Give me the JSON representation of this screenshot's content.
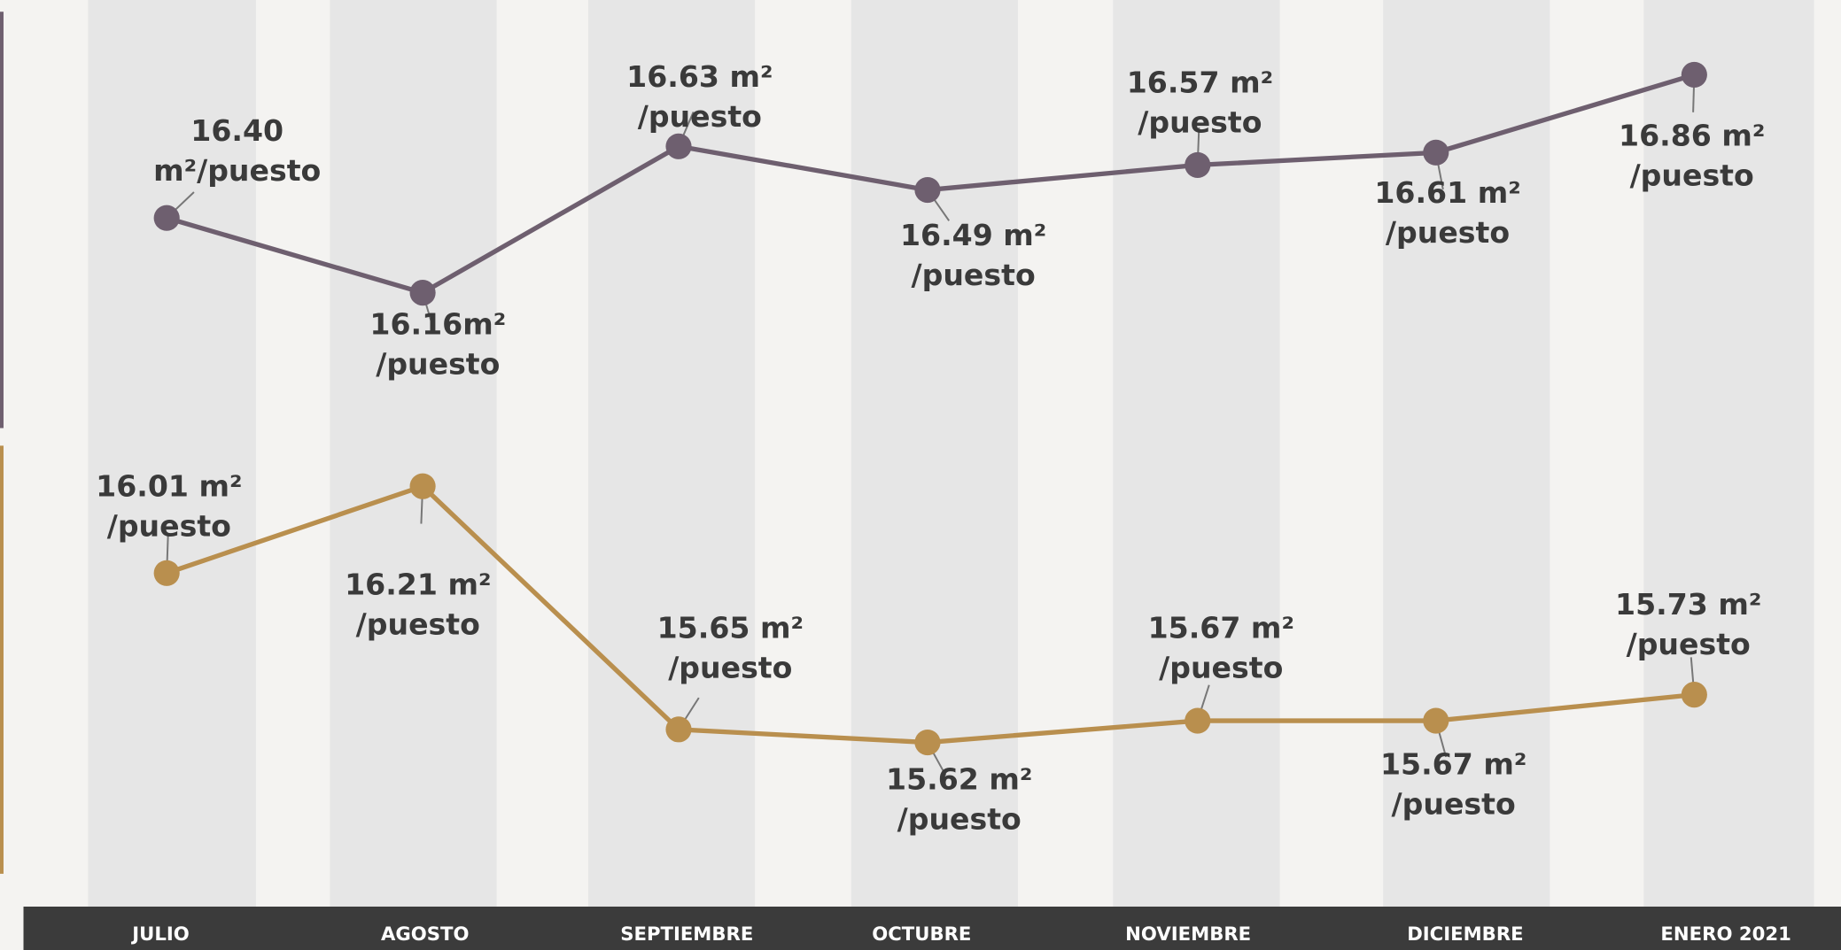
{
  "chart_data": {
    "type": "line",
    "categories": [
      "JULIO",
      "AGOSTO",
      "SEPTIEMBRE",
      "OCTUBRE",
      "NOVIEMBRE",
      "DICIEMBRE",
      "ENERO 2021"
    ],
    "series": [
      {
        "color": "#6e5f6f",
        "values": [
          16.4,
          16.16,
          16.63,
          16.49,
          16.57,
          16.61,
          16.86
        ],
        "value_labels": [
          "16.40\nm²/puesto",
          "16.16m²\n/puesto",
          "16.63 m²\n/puesto",
          "16.49 m²\n/puesto",
          "16.57 m²\n/puesto",
          "16.61 m²\n/puesto",
          "16.86 m²\n/puesto"
        ]
      },
      {
        "color": "#b98f4e",
        "axis": "y2",
        "values": [
          16.01,
          16.21,
          15.65,
          15.62,
          15.67,
          15.67,
          15.73
        ],
        "value_labels": [
          "16.01 m²\n/puesto",
          "16.21 m²\n/puesto",
          "15.65 m²\n/puesto",
          "15.62 m²\n/puesto",
          "15.67 m²\n/puesto",
          "15.67 m²\n/puesto",
          "15.73 m²\n/puesto"
        ]
      }
    ],
    "ylim": [
      14.2,
      17.1
    ],
    "y2lim": [
      15.25,
      17.33
    ]
  }
}
